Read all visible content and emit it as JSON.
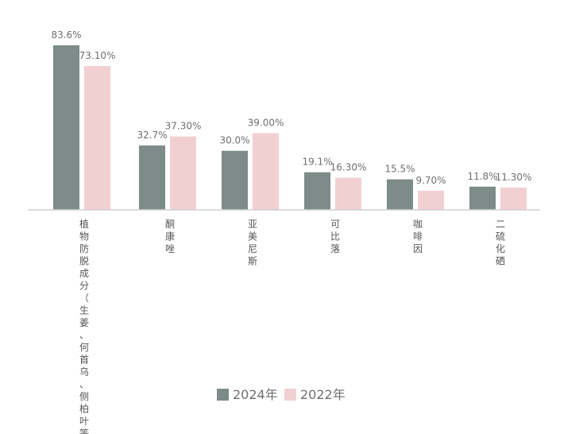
{
  "chart_data": {
    "type": "bar",
    "title": "",
    "xlabel": "",
    "ylabel": "",
    "ylim": [
      0,
      90
    ],
    "grid": false,
    "legend_position": "bottom",
    "categories": [
      "植物防脱成分（生姜、何首乌、侧柏叶等）",
      "酮康唑",
      "亚美尼斯",
      "可比落",
      "咖啡因",
      "二硫化硒"
    ],
    "series": [
      {
        "name": "2024年",
        "color": "#7d8b89",
        "values": [
          83.6,
          32.7,
          30.0,
          19.1,
          15.5,
          11.8
        ],
        "labels": [
          "83.6%",
          "32.7%",
          "30.0%",
          "19.1%",
          "15.5%",
          "11.8%"
        ]
      },
      {
        "name": "2022年",
        "color": "#f2d0d1",
        "values": [
          73.1,
          37.3,
          39.0,
          16.3,
          9.7,
          11.3
        ],
        "labels": [
          "73.10%",
          "37.30%",
          "39.00%",
          "16.30%",
          "9.70%",
          "11.30%"
        ]
      }
    ]
  }
}
